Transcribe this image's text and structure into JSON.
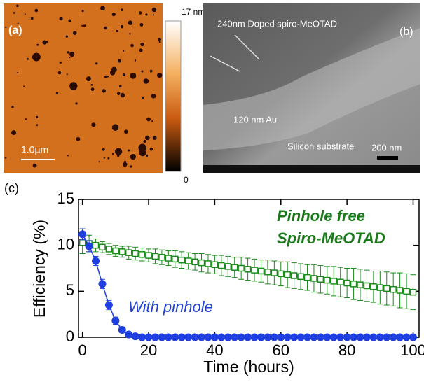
{
  "panel_a": {
    "label": "(a)",
    "scale_bar": "1.0µm",
    "colorbar_max": "17 nm",
    "colorbar_min": "0"
  },
  "panel_b": {
    "label": "(b)",
    "annotations": [
      "240nm Doped spiro-MeOTAD",
      "120 nm Au",
      "Silicon substrate"
    ],
    "scale_bar": "200 nm"
  },
  "chart_data": {
    "type": "line",
    "panel_label": "(c)",
    "xlabel": "Time (hours)",
    "ylabel": "Efficiency (%)",
    "annotations": [
      {
        "text": "Pinhole free",
        "color": "#1a7a1a"
      },
      {
        "text": "Spiro-MeOTAD",
        "color": "#1a7a1a"
      },
      {
        "text": "With pinhole",
        "color": "#1f3fd6"
      }
    ],
    "x": [
      0,
      2,
      4,
      6,
      8,
      10,
      12,
      14,
      16,
      18,
      20,
      22,
      24,
      26,
      28,
      30,
      32,
      34,
      36,
      38,
      40,
      42,
      44,
      46,
      48,
      50,
      52,
      54,
      56,
      58,
      60,
      62,
      64,
      66,
      68,
      70,
      72,
      74,
      76,
      78,
      80,
      82,
      84,
      86,
      88,
      90,
      92,
      94,
      96,
      98,
      100
    ],
    "series": [
      {
        "color": "#1a8a1a",
        "marker": "square",
        "values": [
          10.3,
          10.2,
          10.0,
          9.8,
          9.6,
          9.4,
          9.3,
          9.2,
          9.1,
          9.0,
          8.9,
          8.8,
          8.7,
          8.6,
          8.5,
          8.4,
          8.3,
          8.2,
          8.1,
          8.0,
          7.9,
          7.8,
          7.7,
          7.6,
          7.5,
          7.4,
          7.3,
          7.2,
          7.1,
          7.0,
          6.9,
          6.8,
          6.7,
          6.6,
          6.5,
          6.4,
          6.3,
          6.2,
          6.1,
          6.0,
          5.9,
          5.8,
          5.7,
          5.6,
          5.5,
          5.4,
          5.3,
          5.2,
          5.1,
          5.0,
          4.9
        ],
        "errors": [
          1.2,
          0.9,
          0.7,
          0.6,
          0.6,
          0.6,
          0.6,
          0.7,
          0.7,
          0.7,
          0.7,
          0.8,
          0.8,
          0.8,
          0.9,
          0.9,
          0.9,
          0.9,
          1.0,
          1.0,
          1.0,
          1.1,
          1.1,
          1.1,
          1.2,
          1.2,
          1.2,
          1.2,
          1.3,
          1.3,
          1.3,
          1.4,
          1.4,
          1.4,
          1.4,
          1.5,
          1.5,
          1.5,
          1.6,
          1.6,
          1.6,
          1.7,
          1.7,
          1.7,
          1.7,
          1.8,
          1.8,
          1.8,
          1.9,
          1.9,
          1.9
        ]
      },
      {
        "color": "#1f3fe0",
        "marker": "circle",
        "values": [
          11.2,
          9.9,
          8.3,
          5.8,
          3.5,
          1.8,
          0.8,
          0.3,
          0.1,
          0,
          0,
          0,
          0,
          0,
          0,
          0,
          0,
          0,
          0,
          0,
          0,
          0,
          0,
          0,
          0,
          0,
          0,
          0,
          0,
          0,
          0,
          0,
          0,
          0,
          0,
          0,
          0,
          0,
          0,
          0,
          0,
          0,
          0,
          0,
          0,
          0,
          0,
          0,
          0,
          0,
          0
        ],
        "errors": [
          0.6,
          0.6,
          0.5,
          0.5,
          0.5,
          0.4,
          0.3,
          0.2,
          0.1,
          0,
          0,
          0,
          0,
          0,
          0,
          0,
          0,
          0,
          0,
          0,
          0,
          0,
          0,
          0,
          0,
          0,
          0,
          0,
          0,
          0,
          0,
          0,
          0,
          0,
          0,
          0,
          0,
          0,
          0,
          0,
          0,
          0,
          0,
          0,
          0,
          0,
          0,
          0,
          0,
          0,
          0
        ]
      }
    ],
    "xlim": [
      -1.2,
      101.8
    ],
    "ylim": [
      0,
      15
    ],
    "xticks": [
      0,
      20,
      40,
      60,
      80,
      100
    ],
    "yticks": [
      0,
      5,
      10,
      15
    ]
  }
}
